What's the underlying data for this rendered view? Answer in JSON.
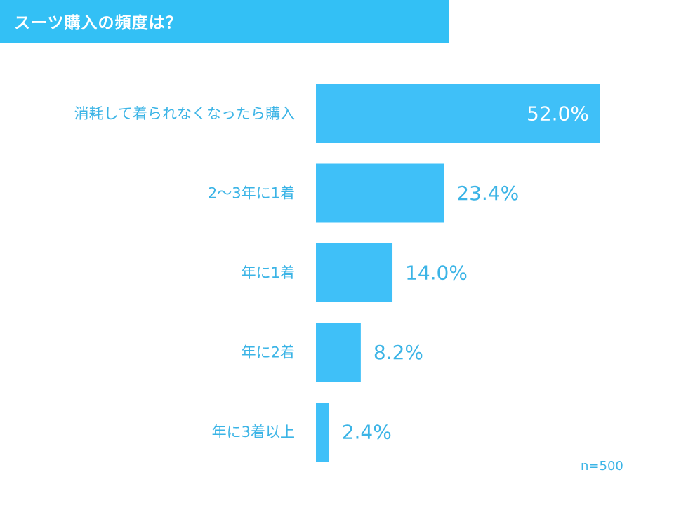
{
  "title": "スーツ購入の頻度は？",
  "sample_note": "n=500",
  "colors": {
    "title_bar": "#33c0f5",
    "bar": "#3fc0f8",
    "label": "#3bb4e6",
    "inside_value": "#ffffff"
  },
  "chart_data": {
    "type": "bar",
    "orientation": "horizontal",
    "title": "スーツ購入の頻度は？",
    "xlabel": "",
    "ylabel": "",
    "grid": false,
    "legend": "none",
    "xlim": [
      0,
      52
    ],
    "categories": [
      "消耗して着られなくなったら購入",
      "2〜3年に1着",
      "年に1着",
      "年に2着",
      "年に3着以上"
    ],
    "values": [
      52.0,
      23.4,
      14.0,
      8.2,
      2.4
    ],
    "value_labels": [
      "52.0%",
      "23.4%",
      "14.0%",
      "8.2%",
      "2.4%"
    ]
  }
}
